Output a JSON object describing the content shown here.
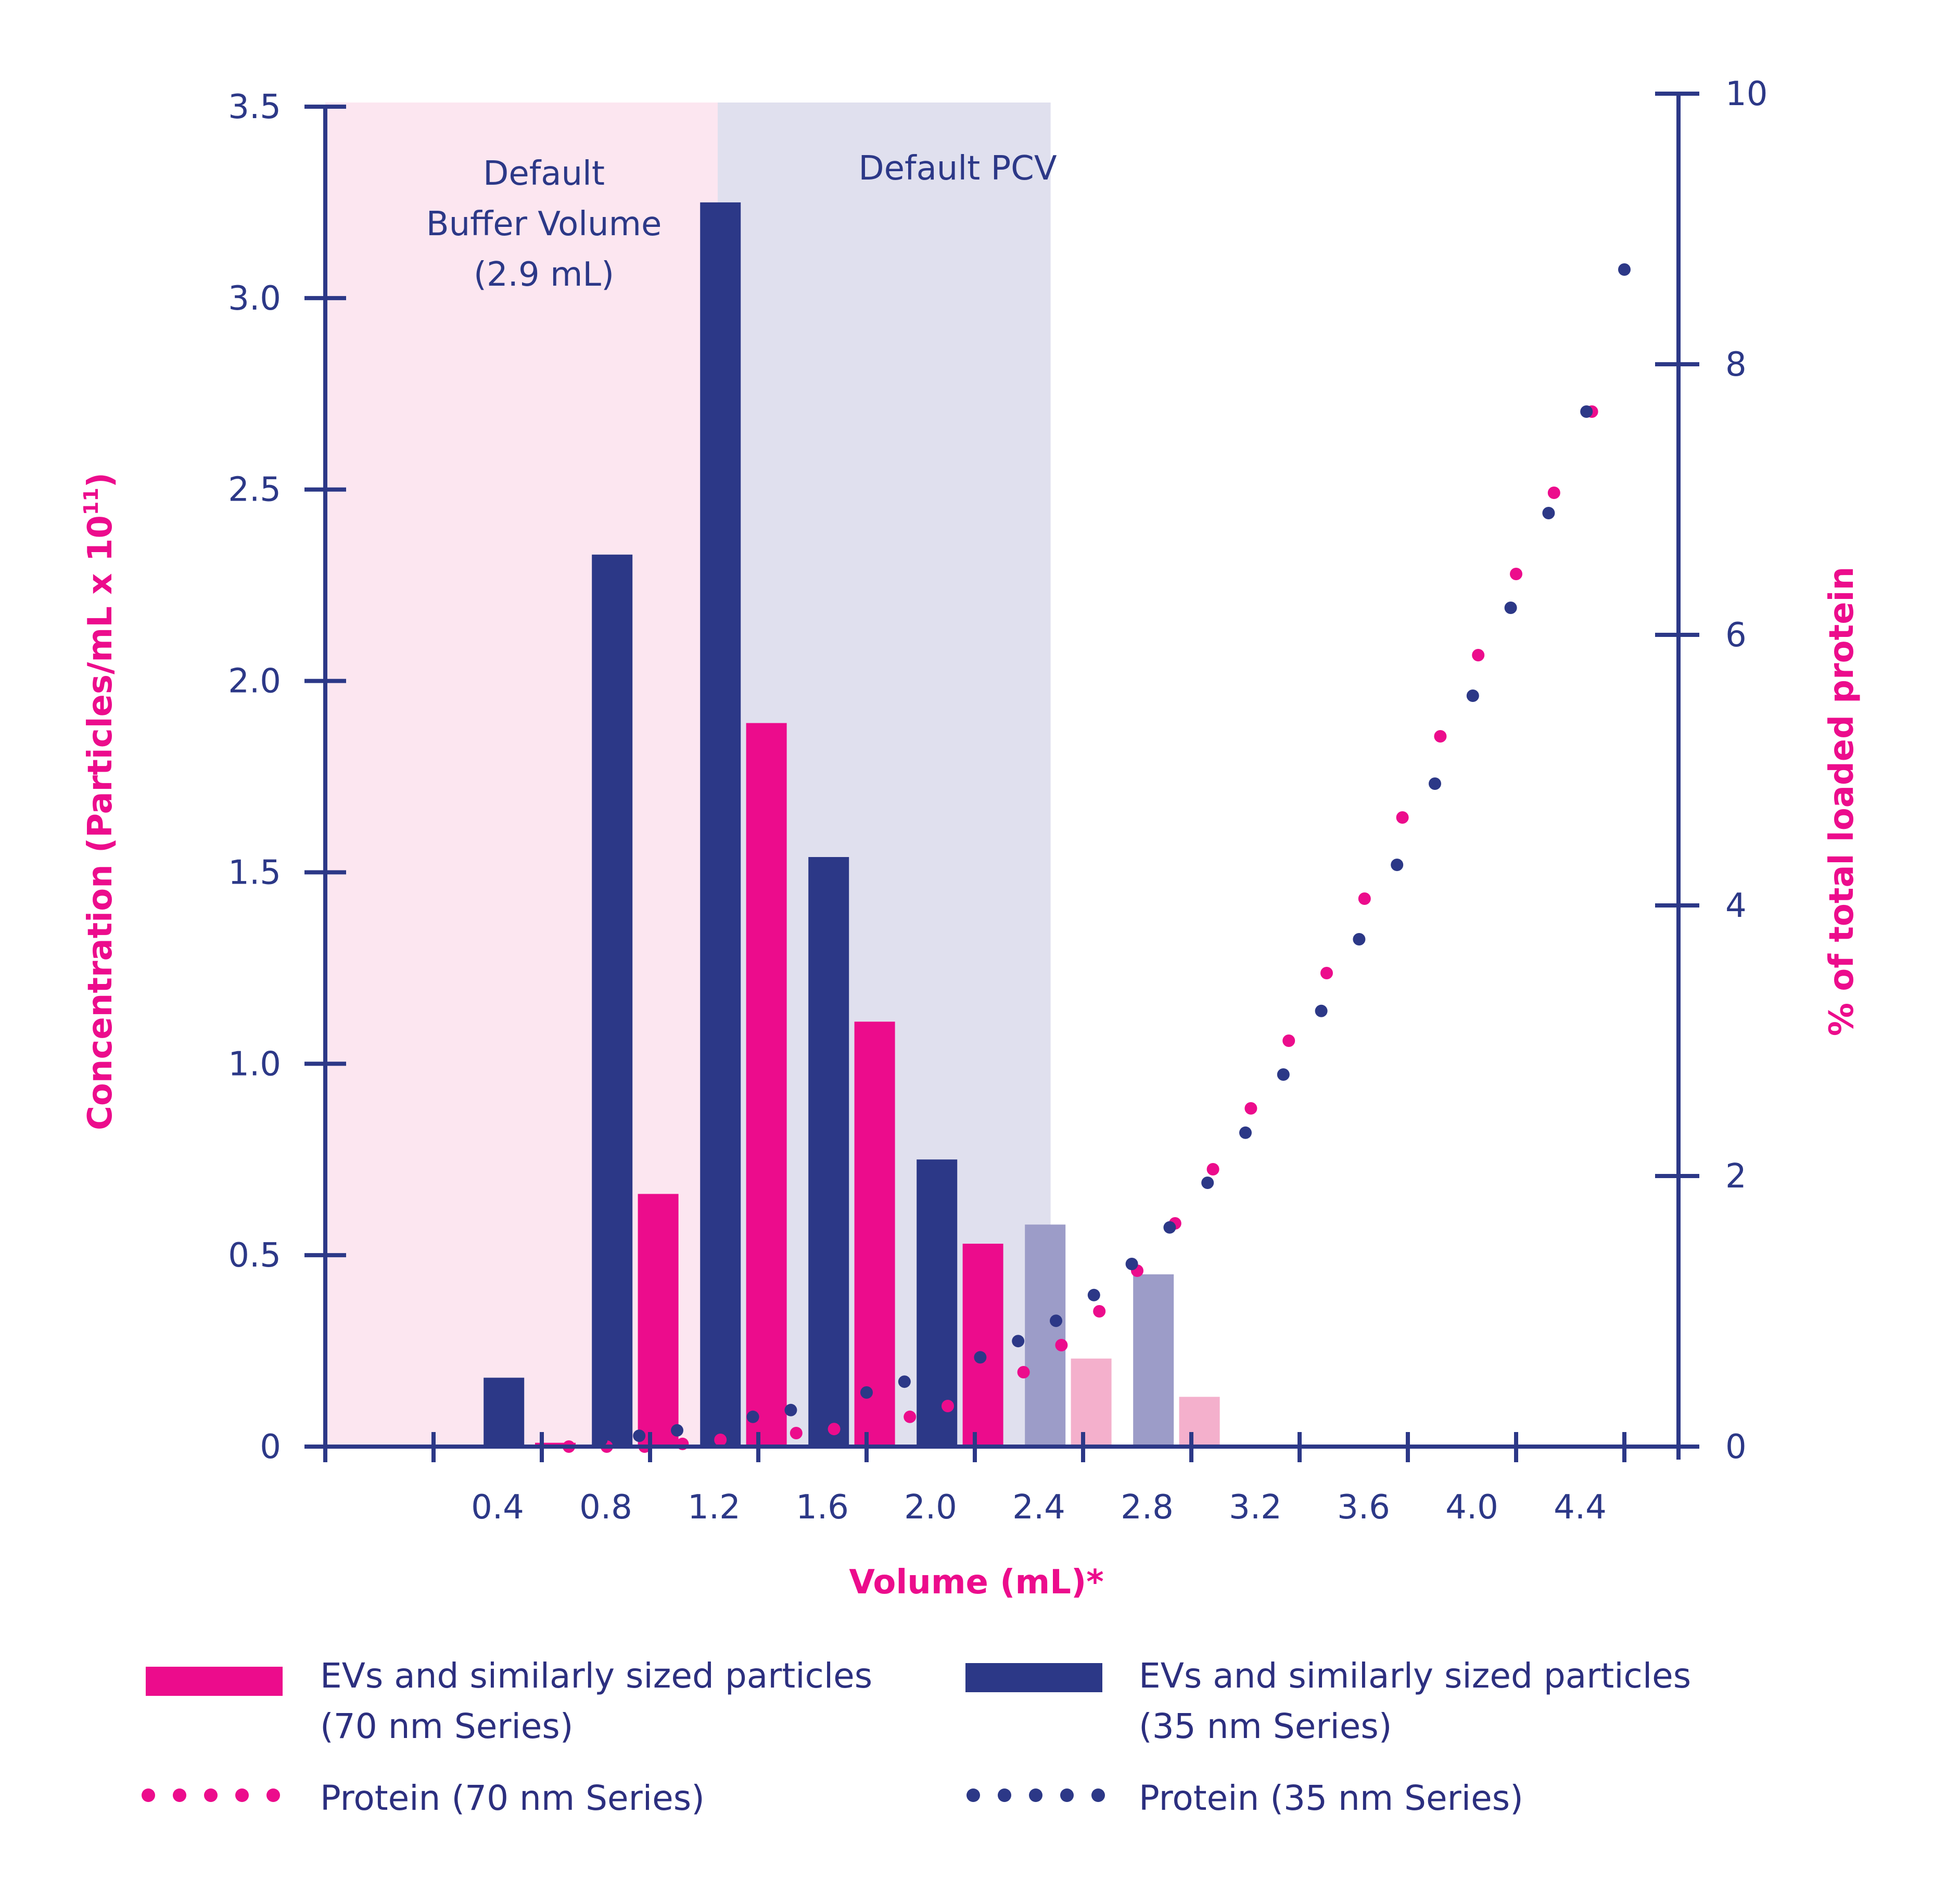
{
  "colors": {
    "navy": "#2c3887",
    "magenta": "#ec0c8c",
    "navy_light": "#9c9cc8",
    "magenta_light": "#f4b0cc",
    "buffer_region": "#fce6f0",
    "pcv_region": "#e0e0ee"
  },
  "chart_data": {
    "type": "bar",
    "x_axis": {
      "label": "Volume (mL)*",
      "range": [
        -0.4,
        4.6
      ],
      "tick_labels": [
        "0.4",
        "0.8",
        "1.2",
        "1.6",
        "2.0",
        "2.4",
        "2.8",
        "3.2",
        "3.6",
        "4.0",
        "4.4"
      ],
      "tick_label_values": [
        0.4,
        0.8,
        1.2,
        1.6,
        2.0,
        2.4,
        2.8,
        3.2,
        3.6,
        4.0,
        4.4
      ],
      "unlabeled_ticks": [
        -0.4,
        0.0
      ]
    },
    "y_left": {
      "label": "Concentration (Particles/mL x 10",
      "label_sup": "11",
      "label_end": ")",
      "range": [
        0,
        3.5
      ],
      "ticks": [
        0,
        0.5,
        1.0,
        1.5,
        2.0,
        2.5,
        3.0,
        3.5
      ],
      "tick_labels": [
        "0",
        "0.5",
        "1.0",
        "1.5",
        "2.0",
        "2.5",
        "3.0",
        "3.5"
      ]
    },
    "y_right": {
      "label": "% of total loaded protein",
      "range": [
        0,
        10
      ],
      "ticks": [
        0,
        2,
        4,
        6,
        8,
        10
      ],
      "tick_labels": [
        "0",
        "2",
        "4",
        "6",
        "8",
        "10"
      ]
    },
    "regions": [
      {
        "name": "buffer",
        "label_lines": [
          "Default",
          "Buffer Volume",
          "(2.9 mL)"
        ],
        "x_range": [
          -0.4,
          1.05
        ]
      },
      {
        "name": "pcv",
        "label_lines": [
          "Default PCV"
        ],
        "x_range": [
          1.05,
          2.28
        ]
      }
    ],
    "bar_series": [
      {
        "name": "EVs and similarly sized particles (70 nm Series)",
        "color_key": "magenta",
        "bars": [
          {
            "x": 0.45,
            "y": 0.01
          },
          {
            "x": 0.83,
            "y": 0.66
          },
          {
            "x": 1.23,
            "y": 1.89
          },
          {
            "x": 1.63,
            "y": 1.11
          },
          {
            "x": 2.03,
            "y": 0.53
          },
          {
            "x": 2.43,
            "y": 0.23,
            "faded": true
          },
          {
            "x": 2.83,
            "y": 0.13,
            "faded": true
          }
        ]
      },
      {
        "name": "EVs and similarly sized particles (35 nm Series)",
        "color_key": "navy",
        "bars": [
          {
            "x": 0.26,
            "y": 0.18
          },
          {
            "x": 0.66,
            "y": 2.33
          },
          {
            "x": 1.06,
            "y": 3.25
          },
          {
            "x": 1.46,
            "y": 1.54
          },
          {
            "x": 1.86,
            "y": 0.75
          },
          {
            "x": 2.26,
            "y": 0.58,
            "faded": true
          },
          {
            "x": 2.66,
            "y": 0.45,
            "faded": true
          }
        ]
      }
    ],
    "protein_series": [
      {
        "name": "Protein (70 nm Series)",
        "color_key": "magenta",
        "x": [
          0.5,
          0.64,
          0.78,
          0.92,
          1.06,
          1.2,
          1.34,
          1.48,
          1.62,
          1.76,
          1.9,
          2.04,
          2.18,
          2.32,
          2.46,
          2.6,
          2.74,
          2.88,
          3.02,
          3.16,
          3.3,
          3.44,
          3.58,
          3.72,
          3.86,
          4.0,
          4.14,
          4.28
        ],
        "y": [
          0.0,
          0.0,
          0.0,
          0.02,
          0.05,
          0.07,
          0.1,
          0.13,
          0.17,
          0.22,
          0.3,
          0.4,
          0.55,
          0.75,
          1.0,
          1.3,
          1.65,
          2.05,
          2.5,
          3.0,
          3.5,
          4.05,
          4.65,
          5.25,
          5.85,
          6.45,
          7.05,
          7.65
        ]
      },
      {
        "name": "Protein (35 nm Series)",
        "color_key": "navy",
        "x": [
          0.62,
          0.76,
          0.9,
          1.04,
          1.18,
          1.32,
          1.46,
          1.6,
          1.74,
          1.88,
          2.02,
          2.16,
          2.3,
          2.44,
          2.58,
          2.72,
          2.86,
          3.0,
          3.14,
          3.28,
          3.42,
          3.56,
          3.7,
          3.84,
          3.98,
          4.12,
          4.26,
          4.4
        ],
        "y": [
          0.05,
          0.08,
          0.12,
          0.17,
          0.22,
          0.27,
          0.33,
          0.4,
          0.48,
          0.56,
          0.66,
          0.78,
          0.93,
          1.12,
          1.35,
          1.62,
          1.95,
          2.32,
          2.75,
          3.22,
          3.75,
          4.3,
          4.9,
          5.55,
          6.2,
          6.9,
          7.65,
          8.7
        ]
      }
    ],
    "legend": [
      {
        "type": "bar",
        "color_key": "magenta",
        "line1": "EVs and similarly sized particles",
        "line2": "(70 nm Series)"
      },
      {
        "type": "bar",
        "color_key": "navy",
        "line1": "EVs and similarly sized particles",
        "line2": "(35 nm Series)"
      },
      {
        "type": "dots",
        "color_key": "magenta",
        "line1": "Protein (70 nm Series)",
        "line2": ""
      },
      {
        "type": "dots",
        "color_key": "navy",
        "line1": "Protein (35 nm Series)",
        "line2": ""
      }
    ]
  }
}
